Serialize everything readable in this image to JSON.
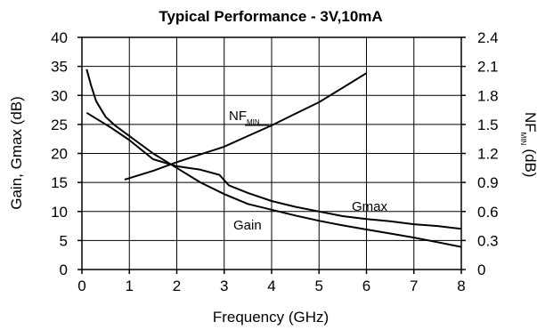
{
  "chart_data": {
    "type": "line",
    "title": "Typical Performance - 3V,10mA",
    "xlabel": "Frequency (GHz)",
    "ylabel_left": "Gain, Gmax (dB)",
    "ylabel_right": {
      "main": "NF",
      "sub": "MIN",
      "unit": "(dB)"
    },
    "xlim": [
      0,
      8
    ],
    "ylim_left": [
      0,
      40
    ],
    "ylim_right": [
      0,
      2.4
    ],
    "x_ticks": [
      "0",
      "1",
      "2",
      "3",
      "4",
      "5",
      "6",
      "7",
      "8"
    ],
    "y_left_ticks": [
      "0",
      "5",
      "10",
      "15",
      "20",
      "25",
      "30",
      "35",
      "40"
    ],
    "y_right_ticks": [
      "0",
      "0.3",
      "0.6",
      "0.9",
      "1.2",
      "1.5",
      "1.8",
      "2.1",
      "2.4"
    ],
    "grid": true,
    "series": [
      {
        "name": "Gain",
        "axis": "left",
        "x": [
          0.1,
          0.2,
          0.3,
          0.5,
          0.7,
          1.0,
          1.5,
          2.0,
          2.5,
          3.0,
          3.5,
          4.0,
          4.5,
          5.0,
          5.5,
          6.0,
          6.5,
          7.0,
          7.5,
          8.0
        ],
        "y": [
          34.5,
          31.5,
          29.0,
          26.3,
          24.8,
          23.0,
          20.0,
          17.5,
          15.0,
          13.0,
          11.3,
          10.3,
          9.3,
          8.4,
          7.6,
          6.9,
          6.2,
          5.5,
          4.7,
          3.9
        ]
      },
      {
        "name": "Gmax",
        "axis": "left",
        "x": [
          0.1,
          0.3,
          0.6,
          1.0,
          1.5,
          2.0,
          2.5,
          2.9,
          3.1,
          3.5,
          4.0,
          4.5,
          5.0,
          5.5,
          6.0,
          6.5,
          7.0,
          7.5,
          8.0
        ],
        "y": [
          27.0,
          26.0,
          24.5,
          22.3,
          19.0,
          17.8,
          17.2,
          16.3,
          14.5,
          13.2,
          11.8,
          10.8,
          10.0,
          9.2,
          8.7,
          8.3,
          7.8,
          7.5,
          7.0
        ]
      },
      {
        "name": "NF_MIN",
        "axis": "right",
        "x": [
          0.9,
          1.5,
          2.0,
          2.5,
          3.0,
          3.5,
          4.0,
          4.5,
          5.0,
          5.5,
          6.0
        ],
        "y": [
          0.93,
          1.02,
          1.11,
          1.19,
          1.27,
          1.38,
          1.49,
          1.61,
          1.73,
          1.88,
          2.03
        ]
      }
    ],
    "annotations": {
      "nf_main": "NF",
      "nf_sub": "MIN",
      "gmax": "Gmax",
      "gain": "Gain"
    },
    "colors": {
      "line": "#000000",
      "grid": "#000000",
      "background": "#ffffff"
    }
  }
}
